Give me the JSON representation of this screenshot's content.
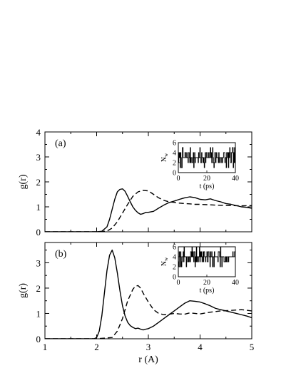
{
  "chart_data": [
    {
      "type": "line",
      "panel_label": "(a)",
      "ylabel": "g(r)",
      "xlim": [
        1,
        5
      ],
      "ylim": [
        0,
        4
      ],
      "xticks": [
        1,
        2,
        3,
        4,
        5
      ],
      "yticks": [
        0,
        1,
        2,
        3,
        4
      ],
      "series": [
        {
          "style": "solid",
          "x": [
            1.0,
            1.5,
            2.0,
            2.1,
            2.2,
            2.25,
            2.3,
            2.35,
            2.4,
            2.45,
            2.5,
            2.55,
            2.6,
            2.65,
            2.7,
            2.75,
            2.8,
            2.85,
            2.9,
            2.95,
            3.0,
            3.1,
            3.2,
            3.3,
            3.4,
            3.5,
            3.6,
            3.7,
            3.8,
            3.9,
            4.0,
            4.1,
            4.2,
            4.3,
            4.4,
            4.5,
            4.6,
            4.7,
            4.8,
            4.9,
            5.0
          ],
          "y": [
            0,
            0,
            0,
            0.02,
            0.2,
            0.5,
            0.9,
            1.3,
            1.6,
            1.7,
            1.72,
            1.62,
            1.42,
            1.2,
            1.0,
            0.86,
            0.76,
            0.7,
            0.73,
            0.78,
            0.78,
            0.82,
            0.95,
            1.07,
            1.17,
            1.23,
            1.3,
            1.36,
            1.4,
            1.37,
            1.3,
            1.28,
            1.32,
            1.25,
            1.2,
            1.13,
            1.1,
            1.05,
            1.0,
            0.98,
            0.94
          ]
        },
        {
          "style": "dashed",
          "x": [
            1.0,
            1.5,
            2.0,
            2.2,
            2.3,
            2.4,
            2.5,
            2.6,
            2.7,
            2.8,
            2.9,
            3.0,
            3.1,
            3.2,
            3.3,
            3.4,
            3.5,
            3.6,
            3.7,
            3.8,
            3.9,
            4.0,
            4.2,
            4.4,
            4.6,
            4.8,
            5.0
          ],
          "y": [
            0,
            0,
            0,
            0.03,
            0.15,
            0.4,
            0.75,
            1.1,
            1.42,
            1.6,
            1.66,
            1.64,
            1.5,
            1.36,
            1.26,
            1.2,
            1.18,
            1.15,
            1.13,
            1.12,
            1.1,
            1.1,
            1.08,
            1.06,
            1.05,
            1.04,
            1.05
          ]
        }
      ],
      "inset": {
        "ylabel": "N",
        "ylabel_sub": "w",
        "xlabel": "t (ps)",
        "xlim": [
          0,
          40
        ],
        "ylim": [
          0,
          6
        ],
        "xticks": [
          0,
          20,
          40
        ],
        "yticks": [
          0,
          2,
          4,
          6
        ],
        "seed": 7,
        "levels": [
          1,
          2,
          3,
          4,
          5
        ],
        "weights": [
          0.2,
          0.5,
          1.0,
          0.45,
          0.15
        ]
      }
    },
    {
      "type": "line",
      "panel_label": "(b)",
      "ylabel": "g(r)",
      "xlabel": "r (A)",
      "xlim": [
        1,
        5
      ],
      "ylim": [
        0,
        3.8
      ],
      "xticks": [
        1,
        2,
        3,
        4,
        5
      ],
      "yticks": [
        0,
        1,
        2,
        3
      ],
      "series": [
        {
          "style": "solid",
          "x": [
            1.0,
            1.5,
            1.95,
            2.0,
            2.05,
            2.1,
            2.15,
            2.2,
            2.25,
            2.3,
            2.35,
            2.4,
            2.45,
            2.5,
            2.55,
            2.6,
            2.65,
            2.7,
            2.75,
            2.8,
            2.85,
            2.9,
            2.95,
            3.0,
            3.1,
            3.2,
            3.3,
            3.4,
            3.5,
            3.6,
            3.7,
            3.8,
            3.9,
            4.0,
            4.1,
            4.2,
            4.3,
            4.4,
            4.5,
            4.6,
            4.7,
            4.8,
            4.9,
            5.0
          ],
          "y": [
            0,
            0,
            0,
            0.05,
            0.3,
            0.9,
            1.8,
            2.7,
            3.3,
            3.5,
            3.2,
            2.6,
            1.9,
            1.3,
            0.9,
            0.65,
            0.52,
            0.45,
            0.4,
            0.42,
            0.38,
            0.35,
            0.38,
            0.4,
            0.5,
            0.65,
            0.8,
            0.95,
            1.1,
            1.25,
            1.4,
            1.5,
            1.48,
            1.45,
            1.38,
            1.3,
            1.2,
            1.15,
            1.1,
            1.05,
            1.0,
            0.95,
            0.9,
            0.83
          ]
        },
        {
          "style": "dashed",
          "x": [
            1.0,
            1.5,
            2.0,
            2.3,
            2.4,
            2.5,
            2.6,
            2.7,
            2.75,
            2.8,
            2.85,
            2.9,
            3.0,
            3.1,
            3.2,
            3.3,
            3.4,
            3.5,
            3.6,
            3.7,
            3.8,
            3.9,
            4.0,
            4.2,
            4.4,
            4.6,
            4.8,
            5.0
          ],
          "y": [
            0,
            0,
            0,
            0.05,
            0.3,
            0.8,
            1.5,
            1.95,
            2.08,
            2.1,
            2.0,
            1.8,
            1.45,
            1.15,
            1.0,
            0.95,
            0.97,
            1.0,
            0.98,
            0.97,
            1.02,
            1.0,
            0.98,
            1.05,
            1.1,
            1.12,
            1.15,
            1.1
          ]
        }
      ],
      "inset": {
        "ylabel": "N",
        "ylabel_sub": "w",
        "xlabel": "t (ps)",
        "xlim": [
          0,
          40
        ],
        "ylim": [
          0,
          6
        ],
        "xticks": [
          0,
          20,
          40
        ],
        "yticks": [
          0,
          2,
          4,
          6
        ],
        "seed": 19,
        "levels": [
          2,
          3,
          4,
          5,
          6
        ],
        "weights": [
          0.15,
          0.45,
          1.0,
          0.5,
          0.12
        ]
      }
    }
  ]
}
